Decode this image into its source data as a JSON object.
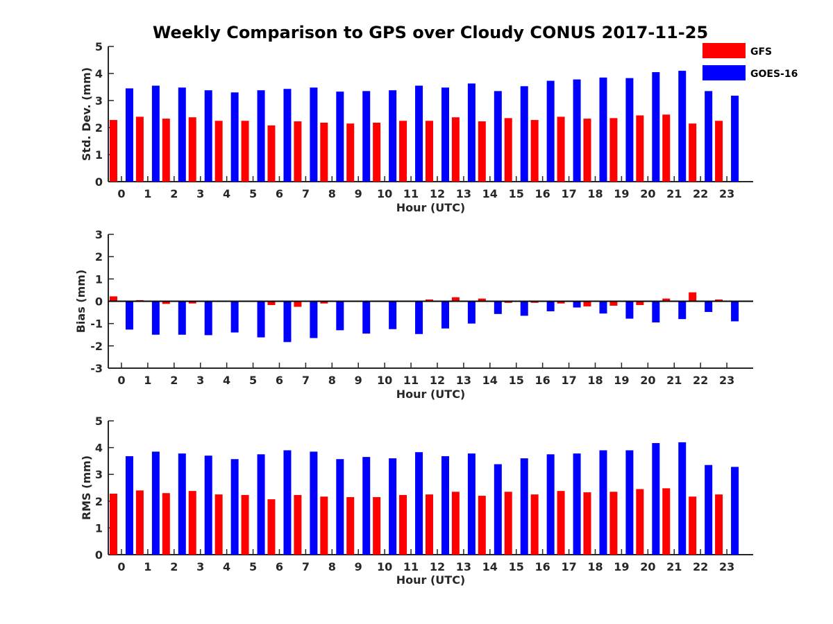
{
  "figure": {
    "title": "Weekly Comparison to GPS over Cloudy CONUS 2017-11-25"
  },
  "legend": {
    "placement": "top-right",
    "items": [
      {
        "name": "GFS",
        "color": "#ff0000"
      },
      {
        "name": "GOES-16",
        "color": "#0000ff"
      }
    ]
  },
  "chart_data": [
    {
      "type": "bar",
      "title": "Weekly Comparison to GPS over Cloudy CONUS 2017-11-25",
      "xlabel": "Hour (UTC)",
      "ylabel": "Std. Dev. (mm)",
      "ylim": [
        0,
        5
      ],
      "yticks": [
        0,
        1,
        2,
        3,
        4,
        5
      ],
      "categories": [
        "0",
        "1",
        "2",
        "3",
        "4",
        "5",
        "6",
        "7",
        "8",
        "9",
        "10",
        "11",
        "12",
        "13",
        "14",
        "15",
        "16",
        "17",
        "18",
        "19",
        "20",
        "21",
        "22",
        "23"
      ],
      "series": [
        {
          "name": "GFS",
          "color": "#ff0000",
          "values": [
            2.28,
            2.4,
            2.33,
            2.38,
            2.25,
            2.25,
            2.08,
            2.23,
            2.18,
            2.15,
            2.18,
            2.25,
            2.25,
            2.38,
            2.23,
            2.35,
            2.28,
            2.4,
            2.33,
            2.35,
            2.45,
            2.48,
            2.15,
            2.25
          ]
        },
        {
          "name": "GOES-16",
          "color": "#0000ff",
          "values": [
            3.45,
            3.55,
            3.48,
            3.38,
            3.3,
            3.38,
            3.43,
            3.48,
            3.33,
            3.35,
            3.38,
            3.55,
            3.48,
            3.63,
            3.35,
            3.53,
            3.73,
            3.78,
            3.85,
            3.83,
            4.05,
            4.1,
            3.35,
            3.18
          ]
        }
      ]
    },
    {
      "type": "bar",
      "xlabel": "Hour (UTC)",
      "ylabel": "Bias (mm)",
      "ylim": [
        -3,
        3
      ],
      "yticks": [
        -3,
        -2,
        -1,
        0,
        1,
        2,
        3
      ],
      "zero_line": true,
      "categories": [
        "0",
        "1",
        "2",
        "3",
        "4",
        "5",
        "6",
        "7",
        "8",
        "9",
        "10",
        "11",
        "12",
        "13",
        "14",
        "15",
        "16",
        "17",
        "18",
        "19",
        "20",
        "21",
        "22",
        "23"
      ],
      "series": [
        {
          "name": "GFS",
          "color": "#ff0000",
          "values": [
            0.22,
            0.05,
            -0.12,
            -0.1,
            0.02,
            0.0,
            -0.17,
            -0.25,
            -0.1,
            -0.03,
            0.03,
            0.03,
            0.08,
            0.18,
            0.12,
            -0.07,
            -0.07,
            -0.1,
            -0.23,
            -0.2,
            -0.17,
            0.12,
            0.4,
            0.08
          ]
        },
        {
          "name": "GOES-16",
          "color": "#0000ff",
          "values": [
            -1.27,
            -1.5,
            -1.5,
            -1.52,
            -1.4,
            -1.62,
            -1.83,
            -1.65,
            -1.3,
            -1.45,
            -1.25,
            -1.47,
            -1.22,
            -1.0,
            -0.57,
            -0.65,
            -0.45,
            -0.28,
            -0.55,
            -0.78,
            -0.95,
            -0.8,
            -0.48,
            -0.9
          ]
        }
      ]
    },
    {
      "type": "bar",
      "xlabel": "Hour (UTC)",
      "ylabel": "RMS (mm)",
      "ylim": [
        0,
        5
      ],
      "yticks": [
        0,
        1,
        2,
        3,
        4,
        5
      ],
      "categories": [
        "0",
        "1",
        "2",
        "3",
        "4",
        "5",
        "6",
        "7",
        "8",
        "9",
        "10",
        "11",
        "12",
        "13",
        "14",
        "15",
        "16",
        "17",
        "18",
        "19",
        "20",
        "21",
        "22",
        "23"
      ],
      "series": [
        {
          "name": "GFS",
          "color": "#ff0000",
          "values": [
            2.28,
            2.4,
            2.3,
            2.38,
            2.25,
            2.23,
            2.07,
            2.23,
            2.17,
            2.15,
            2.15,
            2.23,
            2.25,
            2.35,
            2.2,
            2.35,
            2.25,
            2.38,
            2.33,
            2.35,
            2.45,
            2.48,
            2.17,
            2.25
          ]
        },
        {
          "name": "GOES-16",
          "color": "#0000ff",
          "values": [
            3.68,
            3.85,
            3.78,
            3.7,
            3.57,
            3.75,
            3.9,
            3.85,
            3.57,
            3.65,
            3.6,
            3.83,
            3.68,
            3.78,
            3.38,
            3.6,
            3.75,
            3.78,
            3.9,
            3.9,
            4.17,
            4.2,
            3.35,
            3.28
          ]
        }
      ]
    }
  ]
}
